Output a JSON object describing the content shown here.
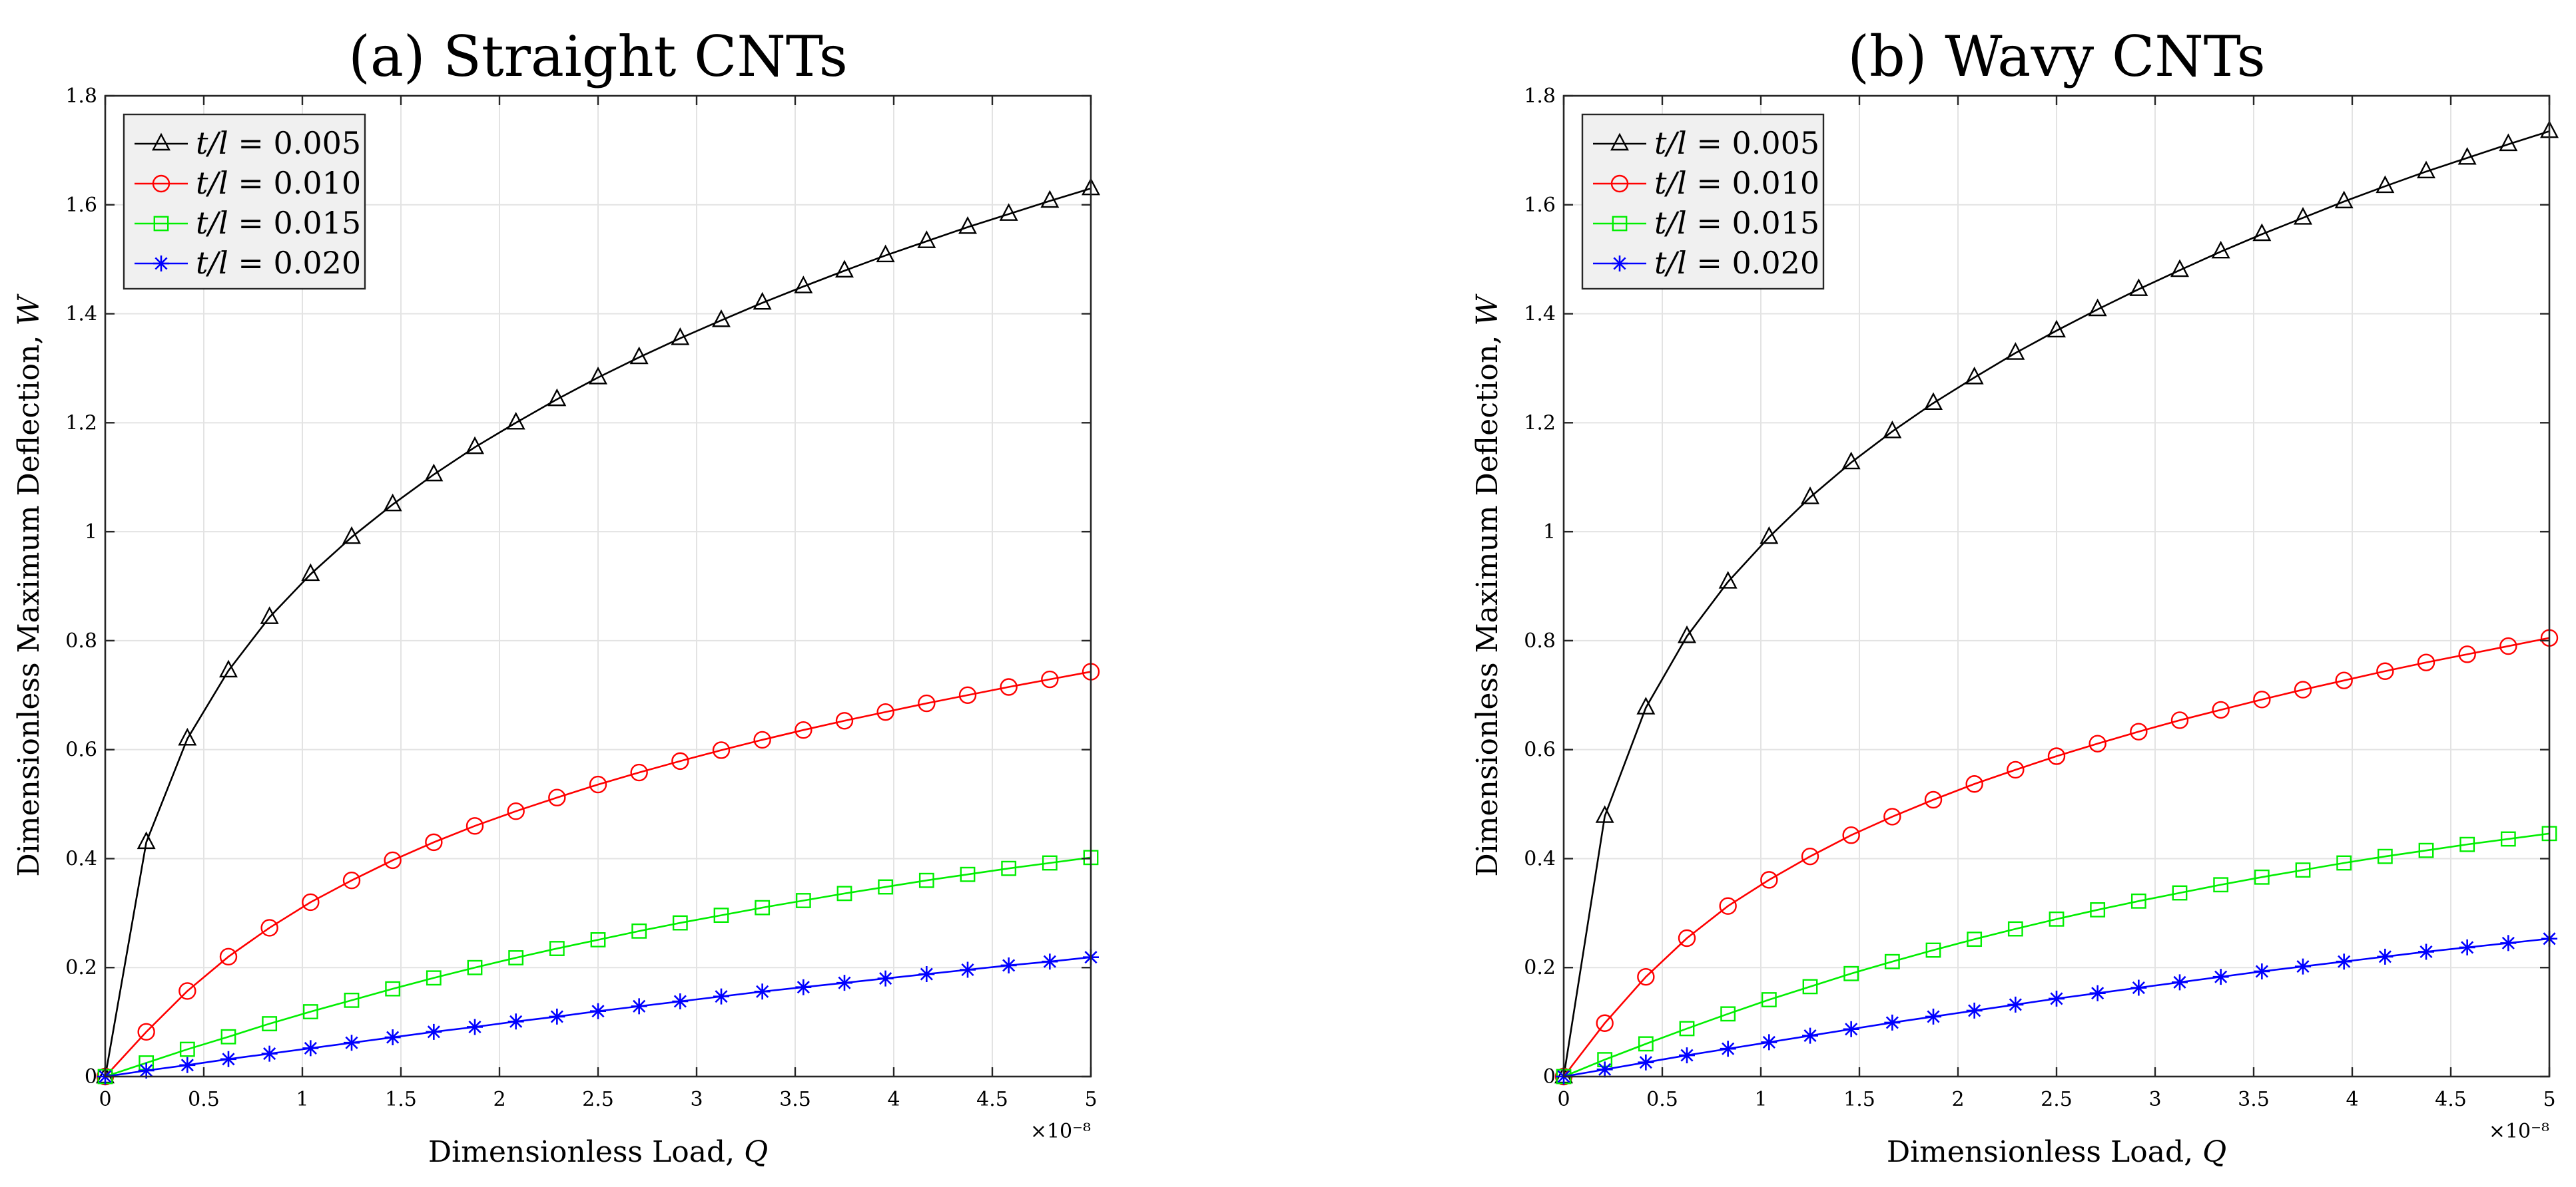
{
  "chart_data": [
    {
      "type": "line",
      "title": "(a) Straight CNTs",
      "xlabel": "Dimensionless Load, Q",
      "ylabel": "Dimensionless Maximum Deflection, W",
      "xlim": [
        0,
        5
      ],
      "ylim": [
        0,
        1.8
      ],
      "x_exponent_label": "×10⁻⁸",
      "grid": true,
      "legend_position": "top-left",
      "xticks": [
        "0",
        "0.5",
        "1",
        "1.5",
        "2",
        "2.5",
        "3",
        "3.5",
        "4",
        "4.5",
        "5"
      ],
      "yticks": [
        "0",
        "0.2",
        "0.4",
        "0.6",
        "0.8",
        "1",
        "1.2",
        "1.4",
        "1.6",
        "1.8"
      ],
      "x": [
        0,
        0.2083,
        0.4167,
        0.625,
        0.8333,
        1.0417,
        1.25,
        1.4583,
        1.6667,
        1.875,
        2.0833,
        2.2917,
        2.5,
        2.7083,
        2.9167,
        3.125,
        3.3333,
        3.5417,
        3.75,
        3.9583,
        4.1667,
        4.375,
        4.5833,
        4.7917,
        5
      ],
      "series": [
        {
          "name": "t/l = 0.005",
          "color": "#000000",
          "marker": "triangle",
          "values": [
            0,
            0.43,
            0.62,
            0.745,
            0.843,
            0.922,
            0.99,
            1.05,
            1.105,
            1.155,
            1.2,
            1.243,
            1.283,
            1.32,
            1.355,
            1.388,
            1.42,
            1.45,
            1.479,
            1.507,
            1.533,
            1.559,
            1.583,
            1.607,
            1.63
          ]
        },
        {
          "name": "t/l = 0.010",
          "color": "#ff0000",
          "marker": "circle",
          "values": [
            0,
            0.082,
            0.157,
            0.22,
            0.273,
            0.32,
            0.36,
            0.397,
            0.43,
            0.46,
            0.487,
            0.512,
            0.536,
            0.558,
            0.579,
            0.599,
            0.618,
            0.636,
            0.653,
            0.669,
            0.685,
            0.7,
            0.715,
            0.729,
            0.743
          ]
        },
        {
          "name": "t/l = 0.015",
          "color": "#00ee00",
          "marker": "square",
          "values": [
            0,
            0.025,
            0.05,
            0.073,
            0.097,
            0.119,
            0.14,
            0.161,
            0.181,
            0.2,
            0.218,
            0.235,
            0.251,
            0.267,
            0.282,
            0.296,
            0.31,
            0.323,
            0.336,
            0.348,
            0.36,
            0.371,
            0.382,
            0.392,
            0.402
          ]
        },
        {
          "name": "t/l = 0.020",
          "color": "#0000ff",
          "marker": "star",
          "values": [
            0,
            0.011,
            0.021,
            0.032,
            0.042,
            0.052,
            0.062,
            0.072,
            0.082,
            0.091,
            0.101,
            0.11,
            0.12,
            0.129,
            0.138,
            0.147,
            0.156,
            0.164,
            0.172,
            0.18,
            0.188,
            0.196,
            0.204,
            0.211,
            0.219
          ]
        }
      ]
    },
    {
      "type": "line",
      "title": "(b) Wavy CNTs",
      "xlabel": "Dimensionless Load, Q",
      "ylabel": "Dimensionless Maximum Deflection, W",
      "xlim": [
        0,
        5
      ],
      "ylim": [
        0,
        1.8
      ],
      "x_exponent_label": "×10⁻⁸",
      "grid": true,
      "legend_position": "top-left",
      "xticks": [
        "0",
        "0.5",
        "1",
        "1.5",
        "2",
        "2.5",
        "3",
        "3.5",
        "4",
        "4.5",
        "5"
      ],
      "yticks": [
        "0",
        "0.2",
        "0.4",
        "0.6",
        "0.8",
        "1",
        "1.2",
        "1.4",
        "1.6",
        "1.8"
      ],
      "x": [
        0,
        0.2083,
        0.4167,
        0.625,
        0.8333,
        1.0417,
        1.25,
        1.4583,
        1.6667,
        1.875,
        2.0833,
        2.2917,
        2.5,
        2.7083,
        2.9167,
        3.125,
        3.3333,
        3.5417,
        3.75,
        3.9583,
        4.1667,
        4.375,
        4.5833,
        4.7917,
        5
      ],
      "series": [
        {
          "name": "t/l = 0.005",
          "color": "#000000",
          "marker": "triangle",
          "values": [
            0,
            0.478,
            0.677,
            0.808,
            0.908,
            0.99,
            1.063,
            1.127,
            1.184,
            1.236,
            1.283,
            1.328,
            1.369,
            1.408,
            1.445,
            1.48,
            1.514,
            1.546,
            1.576,
            1.606,
            1.634,
            1.661,
            1.686,
            1.711,
            1.735
          ]
        },
        {
          "name": "t/l = 0.010",
          "color": "#ff0000",
          "marker": "circle",
          "values": [
            0,
            0.098,
            0.183,
            0.254,
            0.313,
            0.361,
            0.404,
            0.443,
            0.477,
            0.508,
            0.537,
            0.563,
            0.588,
            0.611,
            0.633,
            0.654,
            0.673,
            0.692,
            0.71,
            0.727,
            0.744,
            0.76,
            0.775,
            0.79,
            0.805
          ]
        },
        {
          "name": "t/l = 0.015",
          "color": "#00ee00",
          "marker": "square",
          "values": [
            0,
            0.031,
            0.06,
            0.088,
            0.115,
            0.141,
            0.165,
            0.189,
            0.211,
            0.232,
            0.252,
            0.271,
            0.289,
            0.306,
            0.322,
            0.337,
            0.352,
            0.366,
            0.379,
            0.392,
            0.404,
            0.415,
            0.426,
            0.436,
            0.446
          ]
        },
        {
          "name": "t/l = 0.020",
          "color": "#0000ff",
          "marker": "star",
          "values": [
            0,
            0.013,
            0.026,
            0.039,
            0.051,
            0.063,
            0.075,
            0.087,
            0.099,
            0.11,
            0.121,
            0.132,
            0.143,
            0.153,
            0.163,
            0.173,
            0.183,
            0.193,
            0.202,
            0.211,
            0.22,
            0.229,
            0.237,
            0.245,
            0.253
          ]
        }
      ]
    }
  ]
}
